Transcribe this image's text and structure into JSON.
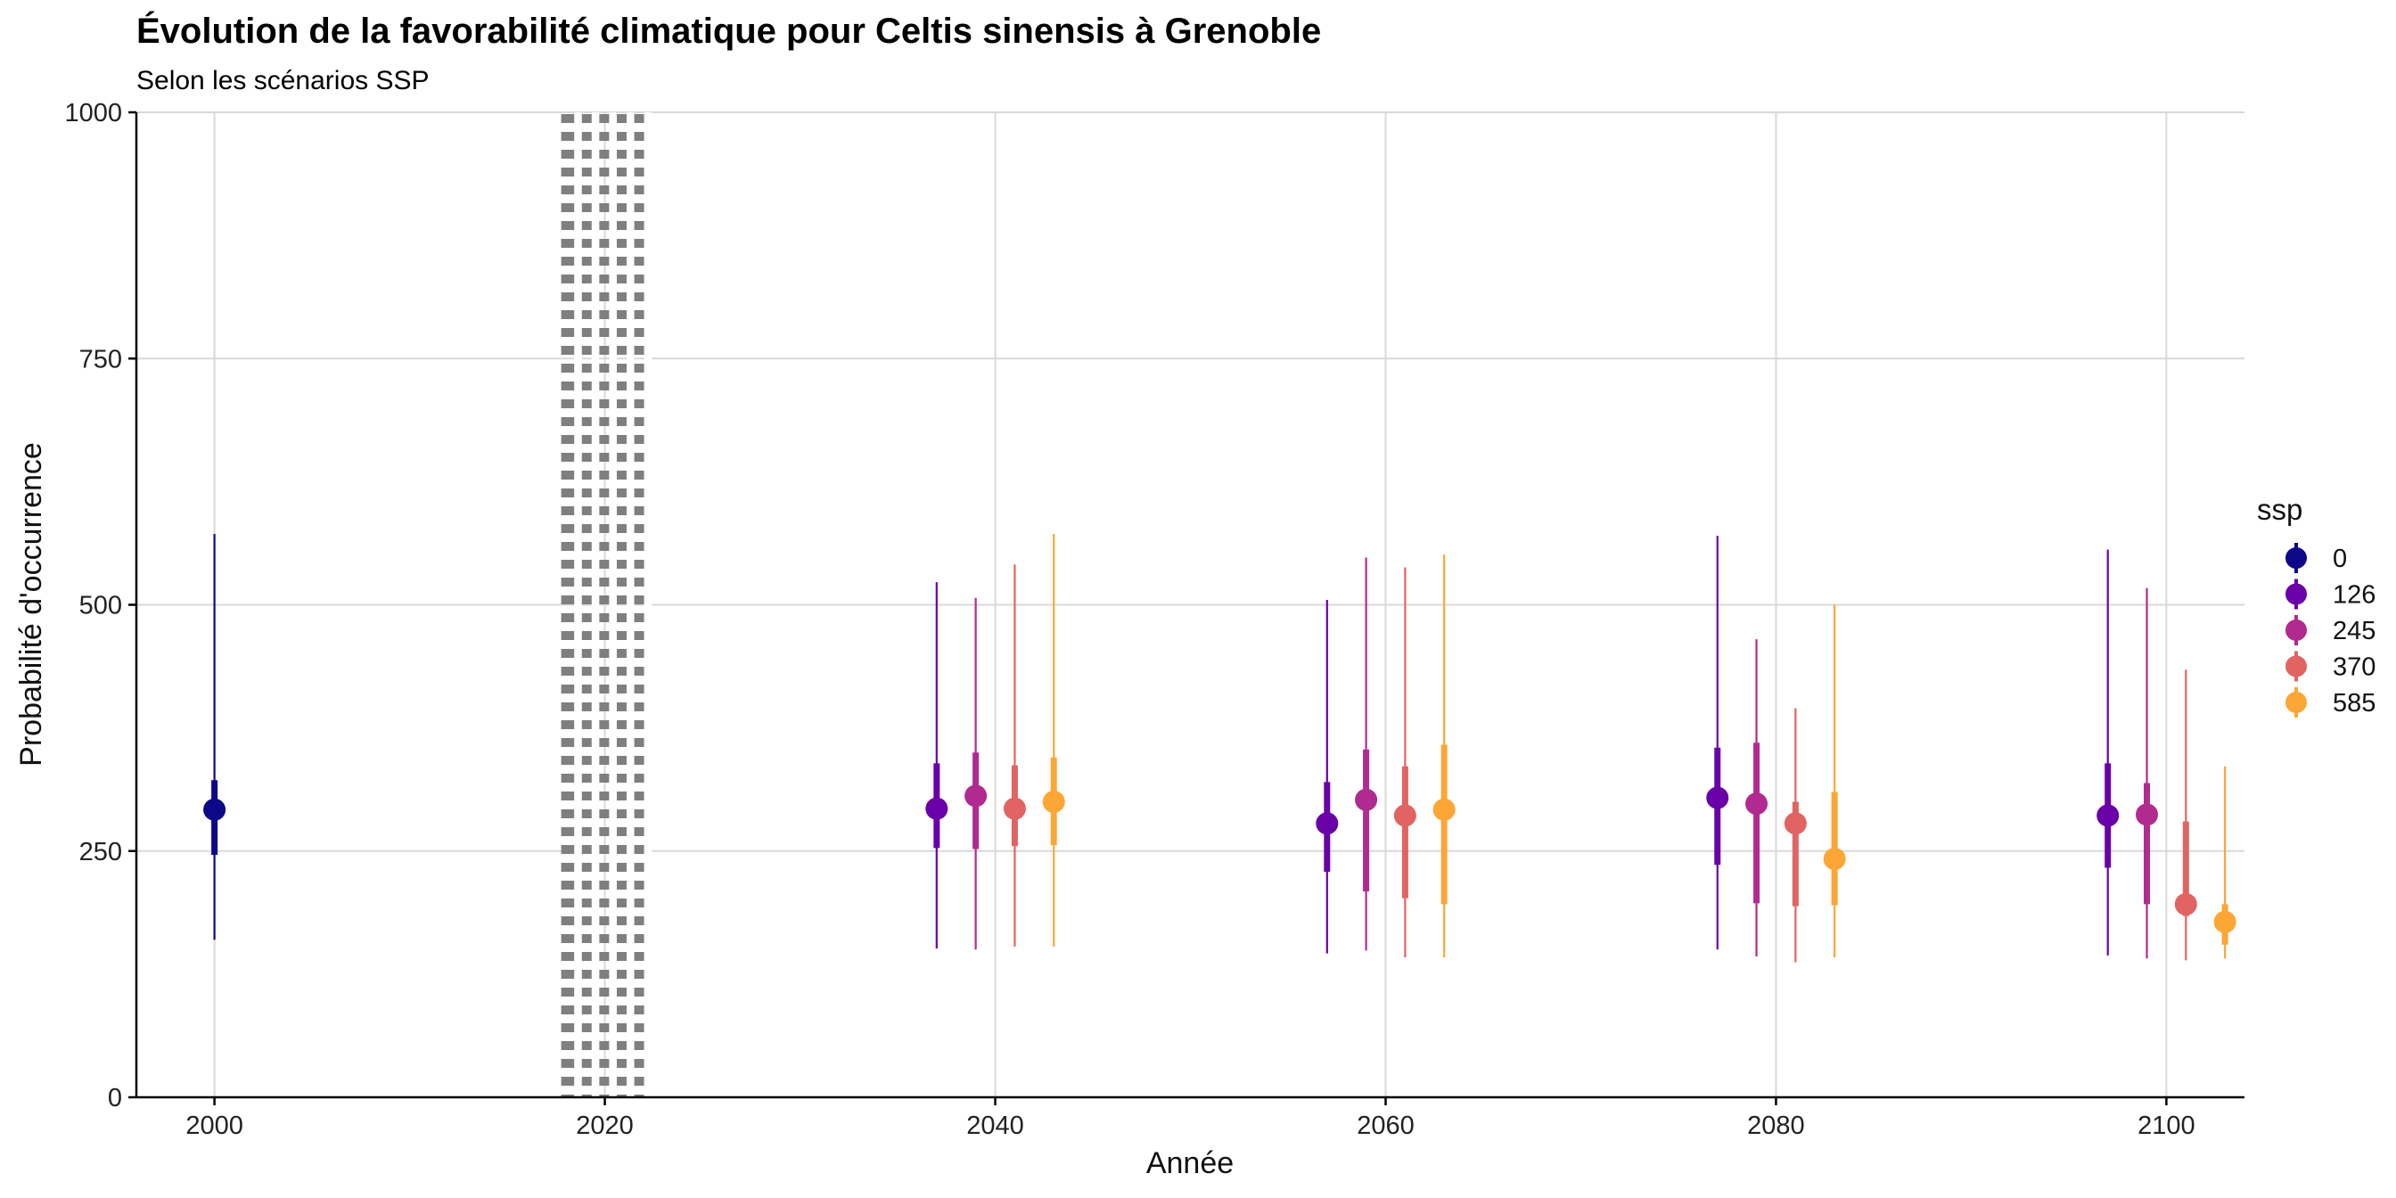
{
  "chart_data": {
    "type": "scatter",
    "title": "Évolution de la favorabilité climatique pour Celtis sinensis à Grenoble",
    "subtitle": "Selon les scénarios SSP",
    "xlabel": "Année",
    "ylabel": "Probabilité d'occurrence",
    "xlim": [
      1996,
      2104
    ],
    "ylim": [
      0,
      1000
    ],
    "x_ticks": [
      2000,
      2020,
      2040,
      2060,
      2080,
      2100
    ],
    "y_ticks": [
      0,
      250,
      500,
      750,
      1000
    ],
    "grid": true,
    "reference_line": {
      "x": 2020,
      "style": "dotted",
      "color": "#7f7f7f"
    },
    "legend": {
      "title": "ssp",
      "position": "right"
    },
    "series": [
      {
        "name": "0",
        "color": "#0d0887",
        "points": [
          {
            "x": 2000,
            "y": 292,
            "inner": [
              246,
              322
            ],
            "outer": [
              160,
              572
            ]
          }
        ]
      },
      {
        "name": "126",
        "color": "#6a00a8",
        "points": [
          {
            "x": 2037,
            "y": 293,
            "inner": [
              253,
              339
            ],
            "outer": [
              151,
              523
            ]
          },
          {
            "x": 2057,
            "y": 278,
            "inner": [
              229,
              320
            ],
            "outer": [
              146,
              505
            ]
          },
          {
            "x": 2077,
            "y": 304,
            "inner": [
              236,
              355
            ],
            "outer": [
              150,
              570
            ]
          },
          {
            "x": 2097,
            "y": 286,
            "inner": [
              233,
              339
            ],
            "outer": [
              144,
              556
            ]
          }
        ]
      },
      {
        "name": "245",
        "color": "#b12a90",
        "points": [
          {
            "x": 2039,
            "y": 306,
            "inner": [
              252,
              350
            ],
            "outer": [
              150,
              507
            ]
          },
          {
            "x": 2059,
            "y": 302,
            "inner": [
              209,
              353
            ],
            "outer": [
              149,
              548
            ]
          },
          {
            "x": 2079,
            "y": 298,
            "inner": [
              197,
              360
            ],
            "outer": [
              143,
              465
            ]
          },
          {
            "x": 2099,
            "y": 287,
            "inner": [
              196,
              319
            ],
            "outer": [
              141,
              517
            ]
          }
        ]
      },
      {
        "name": "370",
        "color": "#e16462",
        "points": [
          {
            "x": 2041,
            "y": 293,
            "inner": [
              255,
              337
            ],
            "outer": [
              153,
              541
            ]
          },
          {
            "x": 2061,
            "y": 286,
            "inner": [
              202,
              336
            ],
            "outer": [
              142,
              538
            ]
          },
          {
            "x": 2081,
            "y": 278,
            "inner": [
              194,
              300
            ],
            "outer": [
              137,
              395
            ]
          },
          {
            "x": 2101,
            "y": 196,
            "inner": [
              184,
              280
            ],
            "outer": [
              139,
              434
            ]
          }
        ]
      },
      {
        "name": "585",
        "color": "#fca636",
        "points": [
          {
            "x": 2043,
            "y": 300,
            "inner": [
              256,
              345
            ],
            "outer": [
              153,
              572
            ]
          },
          {
            "x": 2063,
            "y": 292,
            "inner": [
              196,
              358
            ],
            "outer": [
              142,
              551
            ]
          },
          {
            "x": 2083,
            "y": 242,
            "inner": [
              195,
              310
            ],
            "outer": [
              142,
              500
            ]
          },
          {
            "x": 2103,
            "y": 178,
            "inner": [
              155,
              196
            ],
            "outer": [
              141,
              336
            ]
          }
        ]
      }
    ]
  }
}
